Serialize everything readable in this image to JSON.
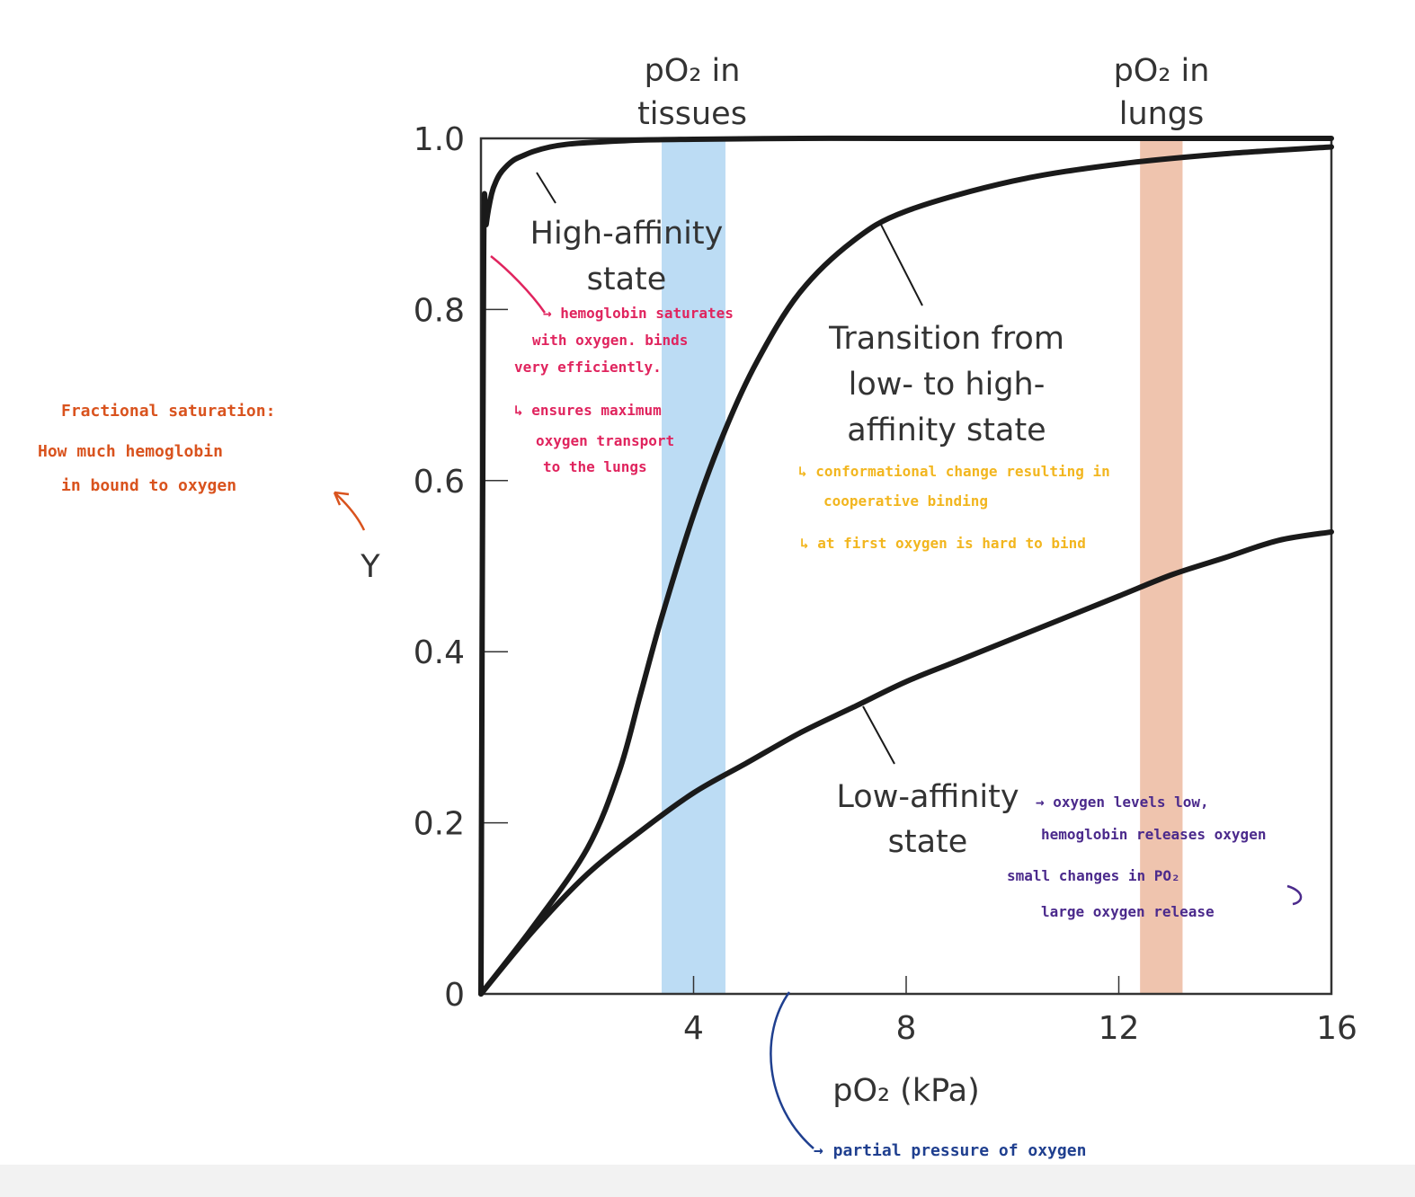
{
  "chart_data": {
    "type": "line",
    "xlabel": "pO₂ (kPa)",
    "ylabel": "Y",
    "xlim": [
      0,
      16
    ],
    "ylim": [
      0,
      1.0
    ],
    "x_ticks": [
      "4",
      "8",
      "12",
      "16"
    ],
    "y_ticks": [
      "0",
      "0.2",
      "0.4",
      "0.6",
      "0.8",
      "1.0"
    ],
    "bands": [
      {
        "label_line1": "pO₂ in",
        "label_line2": "tissues",
        "x_from": 3.4,
        "x_to": 4.6,
        "color": "#bcdcf4"
      },
      {
        "label_line1": "pO₂ in",
        "label_line2": "lungs",
        "x_from": 12.4,
        "x_to": 13.2,
        "color": "#efc4ae"
      }
    ],
    "series": [
      {
        "x": [
          0,
          0.05,
          0.1,
          0.2,
          0.3,
          0.4,
          0.6,
          0.8,
          1.0,
          1.3,
          1.6,
          2.0,
          3.0,
          4.0,
          6.0,
          8.0,
          12.0,
          16.0
        ],
        "values": [
          0,
          0.86,
          0.9,
          0.935,
          0.952,
          0.962,
          0.974,
          0.98,
          0.985,
          0.99,
          0.993,
          0.995,
          0.998,
          0.999,
          1.0,
          1.0,
          1.0,
          1.0
        ]
      },
      {
        "x": [
          0,
          1.0,
          2.0,
          2.6,
          3.0,
          3.4,
          4.0,
          4.6,
          5.2,
          6.0,
          7.0,
          8.0,
          10.0,
          12.0,
          14.0,
          16.0
        ],
        "values": [
          0,
          0.08,
          0.17,
          0.26,
          0.35,
          0.44,
          0.56,
          0.66,
          0.74,
          0.82,
          0.88,
          0.915,
          0.95,
          0.97,
          0.982,
          0.99
        ]
      },
      {
        "x": [
          0,
          1,
          2,
          3,
          4,
          5,
          6,
          7,
          8,
          9,
          10,
          11,
          12,
          13,
          14,
          15,
          16
        ],
        "values": [
          0,
          0.075,
          0.14,
          0.19,
          0.235,
          0.27,
          0.305,
          0.335,
          0.365,
          0.39,
          0.415,
          0.44,
          0.465,
          0.49,
          0.51,
          0.53,
          0.54
        ]
      }
    ],
    "state_labels": {
      "high": [
        "High-affinity",
        "state"
      ],
      "transition": [
        "Transition from",
        "low- to high-",
        "affinity state"
      ],
      "low": [
        "Low-affinity",
        "state"
      ]
    }
  },
  "annotations": {
    "red": [
      "→ hemoglobin saturates",
      "with oxygen. binds",
      "very efficiently.",
      "↳ ensures maximum",
      "oxygen transport",
      "to the lungs"
    ],
    "orange": [
      "Fractional saturation:",
      "How much hemoglobin",
      "in bound to oxygen"
    ],
    "yellow": [
      "↳ conformational change resulting in",
      "cooperative binding",
      "↳ at first oxygen is hard to bind"
    ],
    "purple": [
      "→ oxygen levels low,",
      "hemoglobin releases oxygen",
      "small changes in PO₂",
      "large oxygen release"
    ],
    "blue": [
      "→ partial pressure of oxygen"
    ]
  },
  "colors": {
    "curve": "#1a1a1a",
    "frame": "#333333",
    "red": "#e0245e",
    "orange": "#d9531e",
    "yellow": "#f2b61f",
    "purple": "#4b2a8c",
    "blue": "#1f3f8f"
  }
}
